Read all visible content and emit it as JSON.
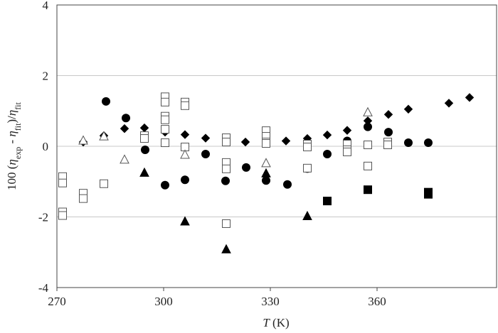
{
  "chart_data": {
    "type": "scatter",
    "xlabel": [
      {
        "text": "T",
        "italic": true
      },
      {
        "text": " (K)"
      }
    ],
    "ylabel": [
      {
        "text": "100 ("
      },
      {
        "text": "η",
        "italic": true
      },
      {
        "text": "exp",
        "sub": true
      },
      {
        "text": " - "
      },
      {
        "text": "η",
        "italic": true
      },
      {
        "text": "fit",
        "sub": true
      },
      {
        "text": ")/"
      },
      {
        "text": "η",
        "italic": true
      },
      {
        "text": "fit",
        "sub": true
      }
    ],
    "xlim": [
      270,
      393.6
    ],
    "xticks": [
      270,
      300,
      330,
      360
    ],
    "ylim": [
      -4,
      4
    ],
    "yticks": [
      -4,
      -2,
      0,
      2,
      4
    ],
    "grid": true,
    "series": [
      {
        "marker": "diamond",
        "filled": true,
        "color": "#000000",
        "x": [
          277.4,
          283.2,
          289,
          294.6,
          300.4,
          306,
          311.8,
          323,
          334.4,
          340.4,
          346,
          351.6,
          357.4,
          363.2,
          368.8,
          380.2,
          386
        ],
        "values": [
          0.12,
          0.3,
          0.5,
          0.52,
          0.4,
          0.33,
          0.23,
          0.12,
          0.15,
          0.22,
          0.32,
          0.45,
          0.72,
          0.9,
          1.05,
          1.22,
          1.38
        ]
      },
      {
        "marker": "circle",
        "filled": true,
        "color": "#000000",
        "x": [
          283.8,
          289.4,
          294.8,
          300.4,
          306,
          311.8,
          317.4,
          323.2,
          328.8,
          334.8,
          340.4,
          346,
          351.6,
          357.4,
          363.2,
          368.8,
          374.4
        ],
        "values": [
          1.27,
          0.8,
          -0.1,
          -1.1,
          -0.95,
          -0.22,
          -0.98,
          -0.6,
          -0.97,
          -1.08,
          -0.63,
          -0.22,
          0.15,
          0.55,
          0.4,
          0.1,
          0.1
        ]
      },
      {
        "marker": "square",
        "filled": false,
        "color": "#555555",
        "x": [
          271.6,
          271.6,
          271.6,
          271.6,
          277.4,
          277.4,
          283.2,
          294.6,
          294.6,
          300.4,
          300.4,
          300.4,
          300.4,
          300.4,
          300.4,
          306,
          306,
          306,
          317.6,
          317.6,
          317.6,
          317.6,
          317.6,
          328.8,
          328.8,
          328.8,
          328.8,
          340.4,
          340.4,
          340.4,
          351.6,
          351.6,
          351.6,
          357.4,
          357.4,
          363,
          363
        ],
        "values": [
          -0.86,
          -1.04,
          -1.86,
          -1.96,
          -1.33,
          -1.48,
          -1.06,
          0.3,
          0.22,
          1.4,
          1.25,
          0.85,
          0.75,
          0.48,
          0.1,
          1.25,
          1.15,
          -0.02,
          0.24,
          0.12,
          -0.46,
          -0.64,
          -2.19,
          0.44,
          0.28,
          0.12,
          0.08,
          0.06,
          -0.02,
          -0.62,
          0.06,
          -0.1,
          -0.16,
          0.04,
          -0.56,
          0.12,
          0.04
        ]
      },
      {
        "marker": "triangle",
        "filled": false,
        "color": "#555555",
        "x": [
          277.4,
          283.2,
          289,
          306,
          328.8,
          357.4
        ],
        "values": [
          0.16,
          0.28,
          -0.38,
          -0.24,
          -0.48,
          0.96
        ]
      },
      {
        "marker": "triangle",
        "filled": true,
        "color": "#000000",
        "x": [
          294.6,
          306,
          317.6,
          328.8,
          340.4
        ],
        "values": [
          -0.75,
          -2.13,
          -2.92,
          -0.77,
          -1.98
        ]
      },
      {
        "marker": "square",
        "filled": true,
        "color": "#000000",
        "x": [
          346,
          357.4,
          374.4,
          374.4
        ],
        "values": [
          -1.55,
          -1.23,
          -1.3,
          -1.36
        ]
      }
    ]
  }
}
